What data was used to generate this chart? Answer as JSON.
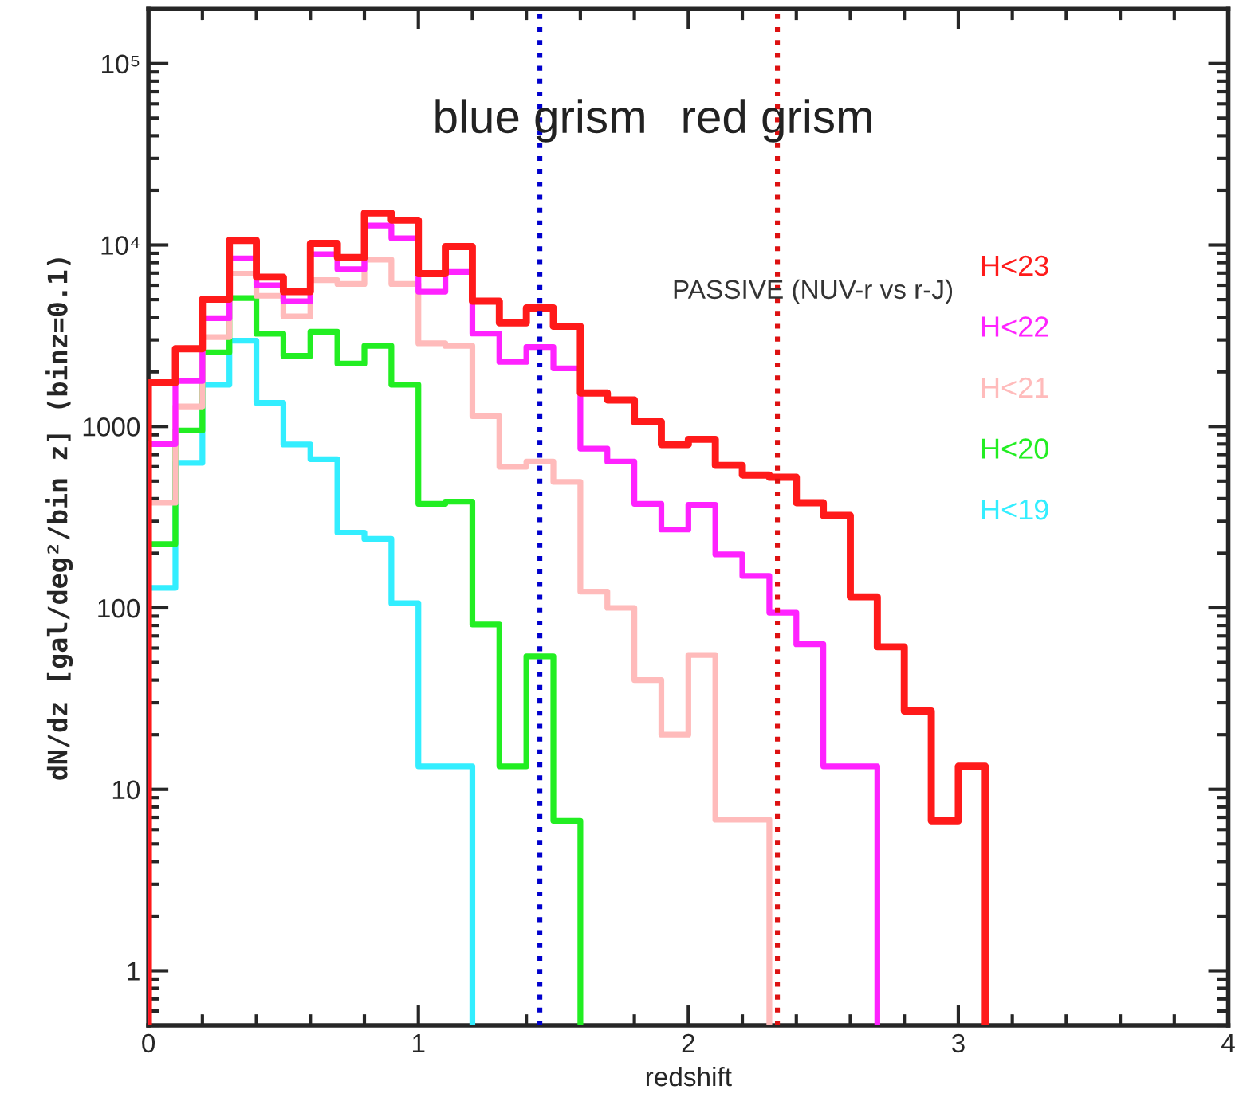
{
  "chart_data": {
    "type": "histogram",
    "xlabel": "redshift",
    "ylabel": "dN/dz [gal/deg²/bin z] (binz=0.1)",
    "bins": [
      0,
      0.1,
      0.2,
      0.3,
      0.4,
      0.5,
      0.6,
      0.7,
      0.8,
      0.9,
      1.0,
      1.1,
      1.2,
      1.3,
      1.4,
      1.5,
      1.6,
      1.7,
      1.8,
      1.9,
      2.0,
      2.1,
      2.2,
      2.3,
      2.4,
      2.5,
      2.6,
      2.7,
      2.8,
      2.9,
      3.0,
      3.1
    ],
    "series": [
      {
        "name": "H<23",
        "color": "#ff1a1a",
        "values": [
          1740,
          2680,
          5020,
          10600,
          6650,
          5530,
          10200,
          8530,
          15000,
          13700,
          6950,
          9800,
          4900,
          3720,
          4500,
          3560,
          1530,
          1400,
          1060,
          795,
          850,
          610,
          540,
          525,
          380,
          323,
          115,
          61,
          27,
          6.7,
          13.4
        ]
      },
      {
        "name": "H<22",
        "color": "#ff22ff",
        "bins": [
          0,
          0.1,
          0.2,
          0.3,
          0.4,
          0.5,
          0.6,
          0.7,
          0.8,
          0.9,
          1.0,
          1.1,
          1.2,
          1.3,
          1.4,
          1.5,
          1.6,
          1.7,
          1.8,
          1.9,
          2.0,
          2.1,
          2.2,
          2.3,
          2.4,
          2.5,
          2.6,
          2.7
        ],
        "values": [
          800,
          1780,
          3950,
          8440,
          6000,
          4900,
          8900,
          7350,
          12800,
          10900,
          5530,
          7100,
          3250,
          2270,
          2740,
          2090,
          755,
          640,
          375,
          270,
          370,
          197,
          150,
          94,
          63,
          13.4,
          13.4
        ]
      },
      {
        "name": "H<21",
        "color": "#ffbbbb",
        "bins": [
          0,
          0.1,
          0.2,
          0.3,
          0.4,
          0.5,
          0.6,
          0.7,
          0.8,
          0.9,
          1.0,
          1.1,
          1.2,
          1.3,
          1.4,
          1.5,
          1.6,
          1.7,
          1.8,
          1.9,
          2.0,
          2.1,
          2.2,
          2.3
        ],
        "values": [
          380,
          1290,
          3110,
          6950,
          5250,
          4040,
          6400,
          6100,
          8300,
          6100,
          2870,
          2780,
          1140,
          600,
          640,
          495,
          123,
          100,
          40,
          20,
          55,
          6.8,
          6.8
        ]
      },
      {
        "name": "H<20",
        "color": "#22ee22",
        "bins": [
          0,
          0.1,
          0.2,
          0.3,
          0.4,
          0.5,
          0.6,
          0.7,
          0.8,
          0.9,
          1.0,
          1.1,
          1.2,
          1.3,
          1.4,
          1.5,
          1.6
        ],
        "values": [
          225,
          950,
          2560,
          5100,
          3240,
          2450,
          3330,
          2220,
          2780,
          1700,
          375,
          385,
          81,
          13.4,
          54,
          6.7
        ]
      },
      {
        "name": "H<19",
        "color": "#33eeff",
        "bins": [
          0,
          0.1,
          0.2,
          0.3,
          0.4,
          0.5,
          0.6,
          0.7,
          0.8,
          0.9,
          1.0,
          1.1,
          1.2
        ],
        "values": [
          129,
          630,
          1700,
          2970,
          1350,
          795,
          660,
          260,
          240,
          106,
          13.4,
          13.4
        ]
      }
    ],
    "log": "y",
    "xlim": [
      0,
      4
    ],
    "ylim": [
      0.5,
      200000
    ],
    "xticks": [
      0,
      1,
      2,
      3,
      4
    ],
    "yticks": [
      1,
      10,
      100,
      1000,
      {
        "value": 10000,
        "label": "10⁴"
      },
      {
        "value": 100000,
        "label": "10⁵"
      }
    ],
    "ref_lines": [
      {
        "axis": "x",
        "value": 1.45,
        "label": "blue grism",
        "color": "#0000cc",
        "line_style": "dotted"
      },
      {
        "axis": "x",
        "value": 2.33,
        "label": "red grism",
        "color": "#dd1111",
        "line_style": "dotted"
      }
    ],
    "annotations": [
      "PASSIVE (NUV-r vs r-J)"
    ],
    "grid": false
  }
}
